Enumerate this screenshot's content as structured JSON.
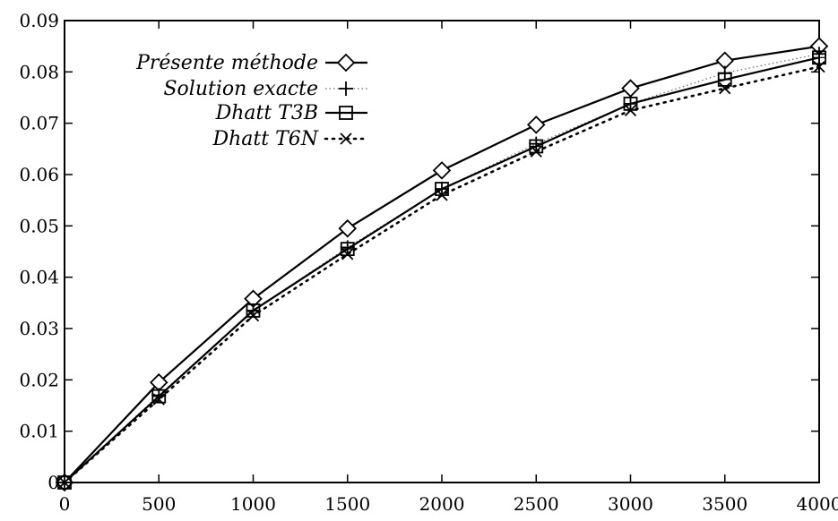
{
  "chart_data": {
    "type": "line",
    "title": "",
    "xlabel": "",
    "ylabel": "",
    "xlim": [
      0,
      4000
    ],
    "ylim": [
      0,
      0.09
    ],
    "x_ticks": [
      0,
      500,
      1000,
      1500,
      2000,
      2500,
      3000,
      3500,
      4000
    ],
    "y_ticks": [
      0,
      0.01,
      0.02,
      0.03,
      0.04,
      0.05,
      0.06,
      0.07,
      0.08,
      0.09
    ],
    "x_tick_labels": [
      "0",
      "500",
      "1000",
      "1500",
      "2000",
      "2500",
      "3000",
      "3500",
      "4000"
    ],
    "y_tick_labels": [
      "0",
      "0.01",
      "0.02",
      "0.03",
      "0.04",
      "0.05",
      "0.06",
      "0.07",
      "0.08",
      "0.09"
    ],
    "grid": false,
    "legend_position": "top-left",
    "x": [
      0,
      500,
      1000,
      1500,
      2000,
      2500,
      3000,
      3500,
      4000
    ],
    "series": [
      {
        "name": "Présente méthode",
        "marker": "diamond",
        "line": "solid",
        "values": [
          0,
          0.0195,
          0.0358,
          0.0495,
          0.0608,
          0.0697,
          0.0768,
          0.0822,
          0.085
        ]
      },
      {
        "name": "Solution exacte",
        "marker": "plus",
        "line": "dotted-light",
        "values": [
          0,
          0.017,
          0.0335,
          0.0458,
          0.0572,
          0.066,
          0.0738,
          0.0798,
          0.0835
        ]
      },
      {
        "name": "Dhatt T3B",
        "marker": "square",
        "line": "solid",
        "values": [
          0,
          0.0168,
          0.0335,
          0.0455,
          0.0572,
          0.0655,
          0.0738,
          0.0785,
          0.0828
        ]
      },
      {
        "name": "Dhatt T6N",
        "marker": "x",
        "line": "dotted",
        "values": [
          0,
          0.0162,
          0.0325,
          0.0445,
          0.056,
          0.0645,
          0.0725,
          0.0768,
          0.081
        ]
      }
    ]
  }
}
